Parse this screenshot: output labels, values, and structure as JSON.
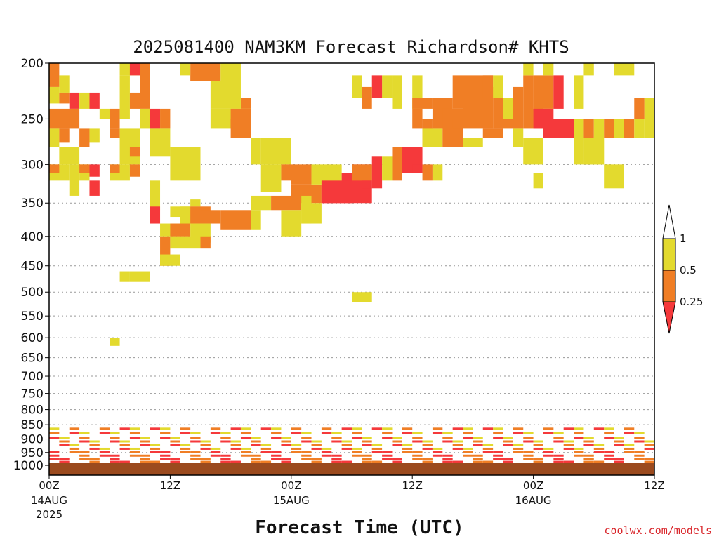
{
  "title": "2025081400 NAM3KM Forecast Richardson# KHTS",
  "xlabel": "Forecast Time (UTC)",
  "credit": "coolwx.com/models",
  "colors": {
    "lt_025": "#f5393b",
    "b025_05": "#f07e25",
    "b05_1": "#e3da2e",
    "ground": "#9b4a1e",
    "grid": "#999999"
  },
  "chart_data": {
    "type": "heatmap",
    "title": "2025081400 NAM3KM Forecast Richardson# KHTS",
    "xlabel": "Forecast Time (UTC)",
    "ylabel": "",
    "y_scale": "log",
    "y_reversed": true,
    "ylim": [
      1040,
      200
    ],
    "xlim": [
      0,
      60
    ],
    "y_ticks": [
      200,
      250,
      300,
      350,
      400,
      450,
      500,
      550,
      600,
      650,
      700,
      750,
      800,
      850,
      900,
      950,
      1000
    ],
    "y_tick_labels": [
      "200",
      "250",
      "300",
      "350",
      "400",
      "450",
      "500",
      "550",
      "600",
      "650",
      "700",
      "750",
      "800",
      "850",
      "900",
      "950",
      "1000"
    ],
    "x_ticks": [
      {
        "hour": 0,
        "label": "00Z",
        "sub": "14AUG",
        "sub2": "2025"
      },
      {
        "hour": 12,
        "label": "12Z",
        "sub": "",
        "sub2": ""
      },
      {
        "hour": 24,
        "label": "00Z",
        "sub": "15AUG",
        "sub2": ""
      },
      {
        "hour": 36,
        "label": "12Z",
        "sub": "",
        "sub2": ""
      },
      {
        "hour": 48,
        "label": "00Z",
        "sub": "16AUG",
        "sub2": ""
      },
      {
        "hour": 60,
        "label": "12Z",
        "sub": "",
        "sub2": ""
      }
    ],
    "legend": [
      "1",
      "0.5",
      "0.25"
    ],
    "category_codes": {
      "1": "< 0.25",
      "2": "0.25 - 0.5",
      "3": "0.5 - 1"
    },
    "grid": "horizontal dotted",
    "ground_below_hPa": 990,
    "cells": [
      [
        0,
        1,
        200,
        220,
        2
      ],
      [
        1,
        2,
        210,
        225,
        3
      ],
      [
        7,
        9,
        200,
        210,
        3
      ],
      [
        8,
        9,
        200,
        210,
        1
      ],
      [
        9,
        10,
        200,
        240,
        2
      ],
      [
        14,
        17,
        200,
        215,
        2
      ],
      [
        13,
        14,
        200,
        210,
        3
      ],
      [
        17,
        19,
        200,
        215,
        3
      ],
      [
        0,
        1,
        220,
        235,
        3
      ],
      [
        1,
        2,
        225,
        235,
        2
      ],
      [
        2,
        3,
        225,
        240,
        1
      ],
      [
        3,
        4,
        225,
        240,
        3
      ],
      [
        0,
        3,
        240,
        260,
        2
      ],
      [
        4,
        5,
        225,
        240,
        1
      ],
      [
        5,
        6,
        240,
        250,
        3
      ],
      [
        6,
        7,
        240,
        260,
        2
      ],
      [
        7,
        8,
        210,
        250,
        3
      ],
      [
        8,
        9,
        225,
        240,
        2
      ],
      [
        9,
        10,
        240,
        260,
        3
      ],
      [
        10,
        11,
        240,
        260,
        1
      ],
      [
        11,
        12,
        240,
        260,
        2
      ],
      [
        16,
        19,
        215,
        240,
        3
      ],
      [
        19,
        20,
        230,
        240,
        2
      ],
      [
        16,
        20,
        240,
        260,
        3
      ],
      [
        18,
        19,
        250,
        260,
        1
      ],
      [
        0,
        1,
        260,
        280,
        3
      ],
      [
        1,
        2,
        260,
        275,
        2
      ],
      [
        3,
        4,
        260,
        280,
        2
      ],
      [
        4,
        5,
        260,
        275,
        3
      ],
      [
        6,
        7,
        260,
        270,
        2
      ],
      [
        7,
        9,
        260,
        300,
        3
      ],
      [
        8,
        9,
        280,
        290,
        2
      ],
      [
        10,
        12,
        260,
        290,
        3
      ],
      [
        12,
        13,
        280,
        320,
        3
      ],
      [
        1,
        3,
        280,
        300,
        3
      ],
      [
        0,
        2,
        300,
        320,
        3
      ],
      [
        0,
        1,
        300,
        310,
        2
      ],
      [
        2,
        3,
        300,
        340,
        3
      ],
      [
        3,
        4,
        300,
        320,
        3
      ],
      [
        3,
        4,
        300,
        310,
        2
      ],
      [
        4,
        5,
        300,
        315,
        1
      ],
      [
        6,
        8,
        300,
        320,
        3
      ],
      [
        6,
        7,
        300,
        310,
        2
      ],
      [
        8,
        9,
        300,
        315,
        2
      ],
      [
        4,
        5,
        320,
        340,
        1
      ],
      [
        13,
        15,
        280,
        320,
        3
      ],
      [
        18,
        20,
        240,
        270,
        2
      ],
      [
        21,
        24,
        270,
        300,
        3
      ],
      [
        21,
        23,
        300,
        335,
        3
      ],
      [
        23,
        24,
        300,
        320,
        2
      ],
      [
        24,
        26,
        300,
        325,
        2
      ],
      [
        24,
        27,
        325,
        350,
        2
      ],
      [
        27,
        29,
        325,
        350,
        1
      ],
      [
        26,
        29,
        300,
        325,
        3
      ],
      [
        29,
        30,
        310,
        350,
        1
      ],
      [
        30,
        32,
        300,
        350,
        1
      ],
      [
        32,
        33,
        290,
        330,
        1
      ],
      [
        33,
        34,
        290,
        320,
        3
      ],
      [
        34,
        35,
        280,
        320,
        2
      ],
      [
        35,
        37,
        280,
        310,
        1
      ],
      [
        36,
        37,
        300,
        310,
        1
      ],
      [
        37,
        38,
        300,
        320,
        2
      ],
      [
        38,
        39,
        300,
        320,
        3
      ],
      [
        30,
        32,
        300,
        320,
        2
      ],
      [
        27,
        30,
        320,
        350,
        1
      ],
      [
        31,
        32,
        320,
        330,
        1
      ],
      [
        20,
        21,
        270,
        300,
        3
      ],
      [
        10,
        11,
        320,
        360,
        3
      ],
      [
        10,
        11,
        355,
        380,
        1
      ],
      [
        12,
        14,
        355,
        370,
        3
      ],
      [
        14,
        15,
        345,
        355,
        3
      ],
      [
        13,
        15,
        355,
        380,
        3
      ],
      [
        14,
        16,
        355,
        380,
        2
      ],
      [
        15,
        17,
        360,
        380,
        2
      ],
      [
        17,
        20,
        360,
        390,
        2
      ],
      [
        20,
        21,
        360,
        390,
        3
      ],
      [
        20,
        22,
        340,
        360,
        3
      ],
      [
        22,
        24,
        340,
        360,
        2
      ],
      [
        24,
        25,
        340,
        360,
        2
      ],
      [
        25,
        26,
        340,
        380,
        3
      ],
      [
        23,
        25,
        360,
        400,
        3
      ],
      [
        25,
        27,
        350,
        380,
        3
      ],
      [
        11,
        14,
        380,
        400,
        3
      ],
      [
        12,
        14,
        380,
        400,
        2
      ],
      [
        14,
        16,
        380,
        410,
        3
      ],
      [
        11,
        12,
        400,
        430,
        2
      ],
      [
        12,
        13,
        400,
        420,
        3
      ],
      [
        13,
        15,
        400,
        420,
        3
      ],
      [
        15,
        16,
        400,
        420,
        2
      ],
      [
        11,
        12,
        430,
        450,
        2
      ],
      [
        11,
        13,
        430,
        450,
        3
      ],
      [
        7,
        8,
        460,
        480,
        3
      ],
      [
        8,
        10,
        460,
        480,
        3
      ],
      [
        6,
        7,
        600,
        620,
        3
      ],
      [
        30,
        31,
        500,
        520,
        3
      ],
      [
        31,
        32,
        500,
        520,
        3
      ],
      [
        36,
        37,
        210,
        240,
        3
      ],
      [
        36,
        37,
        240,
        260,
        2
      ],
      [
        37,
        38,
        250,
        280,
        2
      ],
      [
        36,
        38,
        230,
        240,
        2
      ],
      [
        37,
        39,
        260,
        280,
        3
      ],
      [
        38,
        40,
        230,
        260,
        2
      ],
      [
        39,
        41,
        240,
        280,
        2
      ],
      [
        40,
        41,
        210,
        240,
        2
      ],
      [
        41,
        42,
        210,
        260,
        2
      ],
      [
        42,
        44,
        210,
        260,
        2
      ],
      [
        43,
        44,
        210,
        230,
        2
      ],
      [
        44,
        45,
        220,
        260,
        2
      ],
      [
        45,
        46,
        230,
        260,
        2
      ],
      [
        46,
        47,
        220,
        260,
        2
      ],
      [
        47,
        48,
        210,
        260,
        2
      ],
      [
        48,
        49,
        210,
        260,
        2
      ],
      [
        49,
        50,
        210,
        240,
        2
      ],
      [
        50,
        51,
        210,
        240,
        1
      ],
      [
        48,
        50,
        240,
        260,
        1
      ],
      [
        49,
        52,
        250,
        270,
        1
      ],
      [
        52,
        53,
        250,
        270,
        3
      ],
      [
        53,
        54,
        250,
        270,
        2
      ],
      [
        52,
        53,
        270,
        300,
        3
      ],
      [
        53,
        55,
        270,
        300,
        3
      ],
      [
        54,
        55,
        250,
        270,
        3
      ],
      [
        55,
        56,
        250,
        270,
        2
      ],
      [
        56,
        57,
        250,
        270,
        3
      ],
      [
        57,
        58,
        250,
        270,
        2
      ],
      [
        58,
        59,
        250,
        270,
        3
      ],
      [
        59,
        60,
        230,
        270,
        3
      ],
      [
        49,
        50,
        200,
        210,
        3
      ],
      [
        52,
        53,
        210,
        240,
        3
      ],
      [
        44,
        45,
        210,
        230,
        3
      ],
      [
        45,
        46,
        230,
        250,
        3
      ],
      [
        47,
        48,
        200,
        210,
        3
      ],
      [
        34,
        35,
        210,
        240,
        3
      ],
      [
        33,
        34,
        210,
        230,
        3
      ],
      [
        30,
        31,
        210,
        230,
        3
      ],
      [
        32,
        33,
        210,
        230,
        1
      ],
      [
        31,
        32,
        220,
        240,
        2
      ],
      [
        56,
        58,
        200,
        210,
        3
      ],
      [
        53,
        54,
        200,
        210,
        3
      ],
      [
        53,
        55,
        270,
        300,
        3
      ],
      [
        55,
        57,
        300,
        330,
        3
      ],
      [
        58,
        59,
        230,
        250,
        2
      ],
      [
        40,
        41,
        250,
        260,
        2
      ],
      [
        43,
        45,
        260,
        270,
        2
      ],
      [
        46,
        47,
        260,
        280,
        3
      ],
      [
        41,
        43,
        270,
        280,
        3
      ],
      [
        47,
        49,
        270,
        300,
        3
      ],
      [
        48,
        49,
        310,
        330,
        3
      ],
      [
        0,
        60,
        990,
        1040,
        4
      ]
    ],
    "low_level_pattern": "Thin layers near surface mostly 0.25-0.5 and <0.25 between 850 and 980 hPa across the forecast"
  }
}
